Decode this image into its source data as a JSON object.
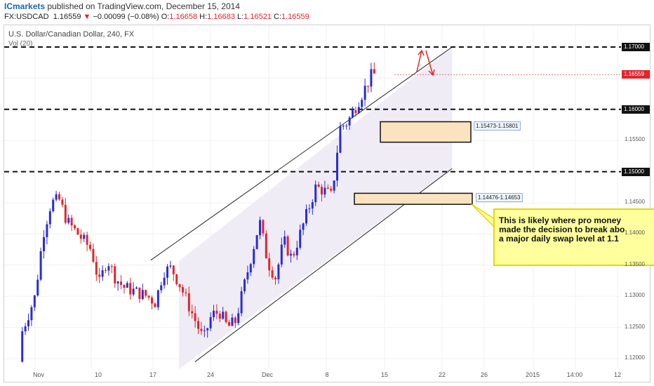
{
  "header": {
    "brand": "ICmarkets",
    "published": " published on TradingView.com, December 15, 2014",
    "symbol": "FX:USDCAD",
    "last": "1.16559",
    "change_arrow": "▼",
    "change": "−0.00099 (−0.08%)",
    "o_label": "O:",
    "open": "1.16658",
    "h_label": "H:",
    "high": "1.16683",
    "l_label": "L:",
    "low": "1.16521",
    "c_label": "C:",
    "close": "1.16559"
  },
  "chart_title": "U.S. Dollar/Canadian Dollar, 240, FX",
  "volume_label": "Vol (20)",
  "annotation_note": "This is likely where pro money\nmade the decision to break abo\na major daily swap level at 1.1",
  "colors": {
    "bull": "#2b2bd6",
    "bear": "#e0262b",
    "channel_fill": "#efecf6",
    "zone_fill": "#fbe3bf",
    "note_fill": "#ffff9e",
    "last_price": "#e0262b"
  },
  "chart_data": {
    "type": "candlestick",
    "title": "U.S. Dollar/Canadian Dollar, 240, FX",
    "y_range": [
      1.1185,
      1.1737
    ],
    "y_ticks": [
      "1.17000",
      "1.16559",
      "1.16000",
      "1.15500",
      "1.15000",
      "1.14500",
      "1.14000",
      "1.13500",
      "1.13000",
      "1.12500",
      "1.12000"
    ],
    "x_ticks": [
      "Nov",
      "10",
      "17",
      "24",
      "Dec",
      "8",
      "15",
      "22",
      "26",
      "2015",
      "14:00",
      "12"
    ],
    "last_price": 1.16559,
    "horizontal_levels": [
      1.17,
      1.16,
      1.15
    ],
    "demand_zones": [
      {
        "label": "1.15473-1.15801",
        "low": 1.15473,
        "high": 1.15801
      },
      {
        "label": "1.14476-1.14653",
        "low": 1.14476,
        "high": 1.14653
      }
    ],
    "channel": {
      "upper_line": [
        [
          "Nov 19",
          1.1358
        ],
        [
          "Dec 25",
          1.17
        ]
      ],
      "lower_line": [
        [
          "Nov 24",
          1.1195
        ],
        [
          "Dec 25",
          1.1505
        ]
      ]
    },
    "price_path": [
      [
        "Oct 31",
        1.1195
      ],
      [
        "Nov 3",
        1.13
      ],
      [
        "Nov 4",
        1.14
      ],
      [
        "Nov 5",
        1.145
      ],
      [
        "Nov 6",
        1.1455
      ],
      [
        "Nov 7",
        1.142
      ],
      [
        "Nov 10",
        1.1375
      ],
      [
        "Nov 11",
        1.132
      ],
      [
        "Nov 12",
        1.136
      ],
      [
        "Nov 13",
        1.133
      ],
      [
        "Nov 14",
        1.1315
      ],
      [
        "Nov 17",
        1.13
      ],
      [
        "Nov 18",
        1.129
      ],
      [
        "Nov 19",
        1.134
      ],
      [
        "Nov 20",
        1.1345
      ],
      [
        "Nov 21",
        1.132
      ],
      [
        "Nov 24",
        1.123
      ],
      [
        "Nov 25",
        1.127
      ],
      [
        "Nov 26",
        1.1275
      ],
      [
        "Nov 27",
        1.125
      ],
      [
        "Nov 28",
        1.126
      ],
      [
        "Dec 1",
        1.142
      ],
      [
        "Dec 2",
        1.1355
      ],
      [
        "Dec 3",
        1.133
      ],
      [
        "Dec 4",
        1.139
      ],
      [
        "Dec 5",
        1.136
      ],
      [
        "Dec 8",
        1.1475
      ],
      [
        "Dec 9",
        1.147
      ],
      [
        "Dec 10",
        1.146
      ],
      [
        "Dec 11",
        1.157
      ],
      [
        "Dec 12",
        1.158
      ],
      [
        "Dec 15",
        1.1656
      ]
    ]
  }
}
